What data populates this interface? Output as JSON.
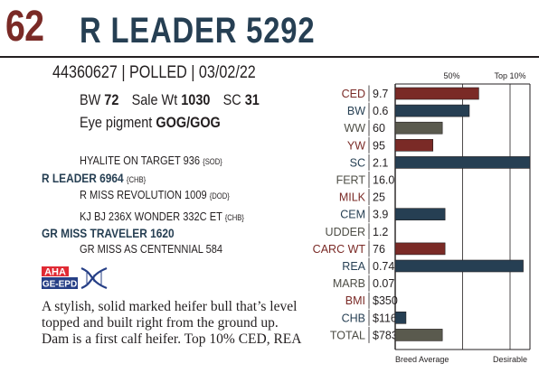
{
  "header": {
    "lot_number": "62",
    "name": "R LEADER 5292"
  },
  "animal": {
    "id_line": "44360627 | POLLED | 03/02/22",
    "bw_label": "BW",
    "bw": "72",
    "sale_wt_label": "Sale Wt",
    "sale_wt": "1030",
    "sc_label": "SC",
    "sc": "31",
    "eye_label": "Eye pigment",
    "eye_value": "GOG/GOG"
  },
  "pedigree": {
    "sire_sire": {
      "name": "HYALITE ON TARGET 936",
      "code": "{SOD}"
    },
    "sire": {
      "name": "R LEADER 6964",
      "code": "{CHB}"
    },
    "sire_dam": {
      "name": "R MISS REVOLUTION 1009",
      "code": "{DOD}"
    },
    "dam_sire": {
      "name": "KJ BJ 236X WONDER 332C ET",
      "code": "{CHB}"
    },
    "dam": {
      "name": "GR MISS TRAVELER 1620",
      "code": ""
    },
    "dam_dam": {
      "name": "GR MISS AS CENTENNIAL 584",
      "code": ""
    }
  },
  "logo": {
    "top": "AHA",
    "bottom": "GE-EPD",
    "colors": {
      "red": "#e02a34",
      "blue": "#263f86"
    }
  },
  "description": [
    "A stylish, solid marked heifer bull that’s level",
    "topped and built right from the ground up.",
    "Dam is a first calf heifer. Top 10% CED, REA"
  ],
  "chart_data": {
    "type": "bar",
    "header_labels": {
      "mid": "50%",
      "top": "Top 10%"
    },
    "footer_labels": {
      "left": "Breed Average",
      "right": "Desirable"
    },
    "scale_note": "bar lengths are percentile scores from Breed Average (0) to Desirable (100)",
    "colors": {
      "red": "#7a2a26",
      "blue": "#263f53",
      "gray": "#5a5a4e",
      "label_red": "#7a2a26",
      "label_blue": "#263f53",
      "label_gray": "#4d4d45"
    },
    "rows": [
      {
        "trait": "CED",
        "value": "9.7",
        "score": 62,
        "color": "red"
      },
      {
        "trait": "BW",
        "value": "0.6",
        "score": 55,
        "color": "blue"
      },
      {
        "trait": "WW",
        "value": "60",
        "score": 35,
        "color": "gray"
      },
      {
        "trait": "YW",
        "value": "95",
        "score": 28,
        "color": "red"
      },
      {
        "trait": "SC",
        "value": "2.1",
        "score": 100,
        "color": "blue"
      },
      {
        "trait": "FERT",
        "value": "16.0",
        "score": null,
        "color": "gray"
      },
      {
        "trait": "MILK",
        "value": "25",
        "score": null,
        "color": "red"
      },
      {
        "trait": "CEM",
        "value": "3.9",
        "score": 37,
        "color": "blue"
      },
      {
        "trait": "UDDER",
        "value": "1.2",
        "score": null,
        "color": "gray"
      },
      {
        "trait": "CARC WT",
        "value": "76",
        "score": 37,
        "color": "red"
      },
      {
        "trait": "REA",
        "value": "0.74",
        "score": 95,
        "color": "blue"
      },
      {
        "trait": "MARB",
        "value": "0.07",
        "score": null,
        "color": "gray"
      },
      {
        "trait": "BMI",
        "value": "$350",
        "score": null,
        "color": "red"
      },
      {
        "trait": "CHB",
        "value": "$116",
        "score": 8,
        "color": "blue"
      },
      {
        "trait": "TOTAL",
        "value": "$783",
        "score": 35,
        "color": "gray"
      }
    ]
  }
}
